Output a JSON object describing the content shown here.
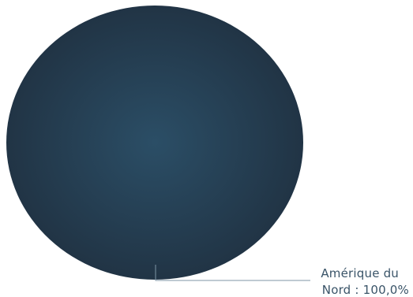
{
  "chart_data": {
    "type": "pie",
    "title": "",
    "categories": [
      "Amérique du Nord"
    ],
    "values": [
      100.0
    ],
    "labels": [
      {
        "line1": "Amérique du",
        "line2": "Nord :   100,0%"
      }
    ],
    "legend": "none",
    "colors": {
      "slice_center": "#2b4e66",
      "slice_edge": "#213445",
      "leader_line": "#7f96a6",
      "label_text": "#3a5468"
    }
  }
}
